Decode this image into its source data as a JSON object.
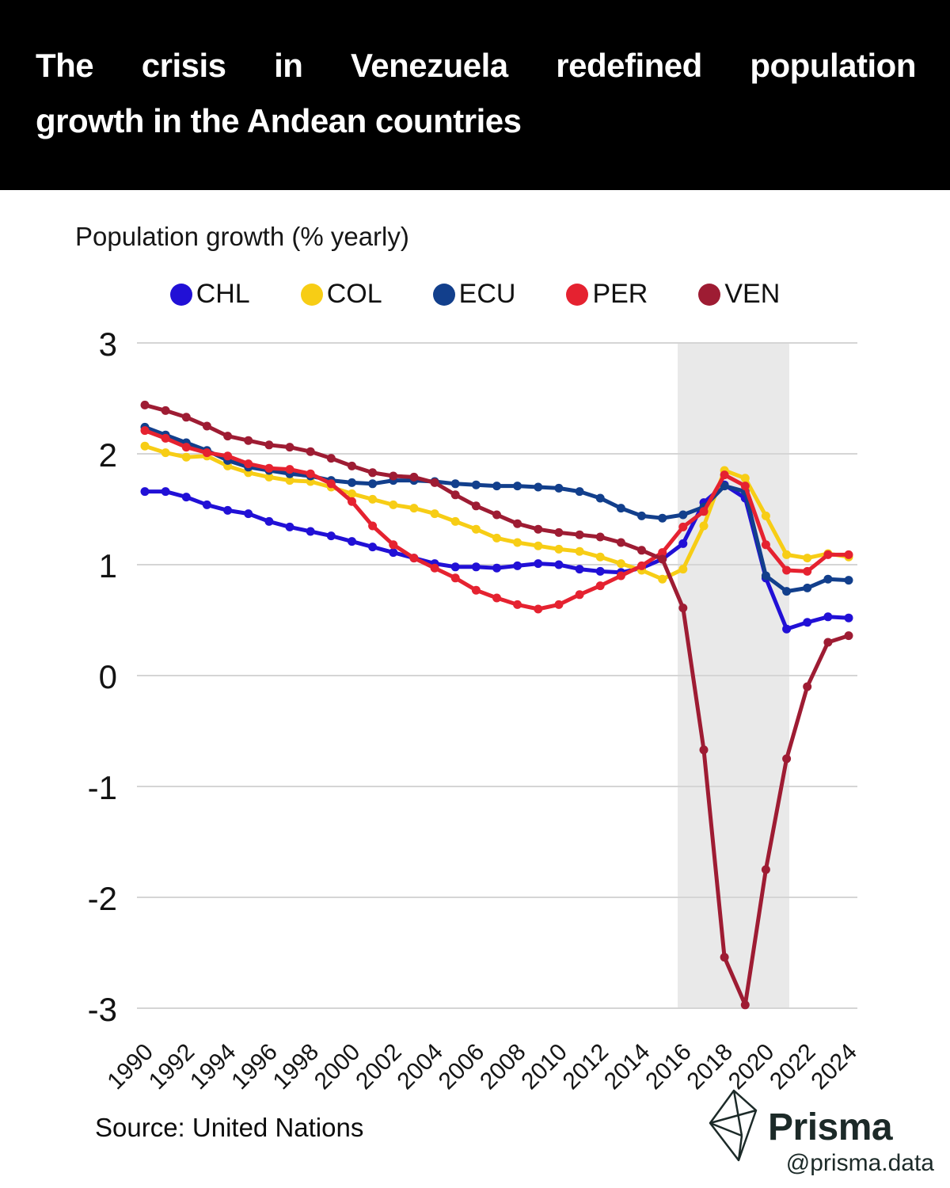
{
  "header": {
    "title": "The crisis in Venezuela redefined population growth in the Andean countries",
    "title_lines": [
      "The crisis in Venezuela redefined population",
      "growth in the Andean countries"
    ]
  },
  "subtitle": "Population growth (% yearly)",
  "source": {
    "label": "Source: United Nations"
  },
  "branding": {
    "name": "Prisma",
    "handle": "@prisma.data",
    "logo_icon": "prism-diamond-icon",
    "color": "#1c2a28"
  },
  "chart_data": {
    "type": "line",
    "title": "Population growth (% yearly)",
    "xlabel": "",
    "ylabel": "Population growth (% yearly)",
    "ylim": [
      -3,
      3
    ],
    "y_ticks": [
      3,
      2,
      1,
      0,
      -1,
      -2,
      -3
    ],
    "x_range": [
      1990,
      2024
    ],
    "x_tick_years": [
      1990,
      1992,
      1994,
      1996,
      1998,
      2000,
      2002,
      2004,
      2006,
      2008,
      2010,
      2012,
      2014,
      2016,
      2018,
      2020,
      2022,
      2024
    ],
    "grid": true,
    "legend_position": "top",
    "grid_color": "#d5d5d5",
    "highlight_band": {
      "from": 2015.74,
      "to": 2021.13,
      "color": "#e9e9e9"
    },
    "x": [
      1990,
      1991,
      1992,
      1993,
      1994,
      1995,
      1996,
      1997,
      1998,
      1999,
      2000,
      2001,
      2002,
      2003,
      2004,
      2005,
      2006,
      2007,
      2008,
      2009,
      2010,
      2011,
      2012,
      2013,
      2014,
      2015,
      2016,
      2017,
      2018,
      2019,
      2020,
      2021,
      2022,
      2023,
      2024
    ],
    "series": [
      {
        "name": "CHL",
        "color": "#2110d6",
        "values": [
          1.66,
          1.66,
          1.61,
          1.54,
          1.49,
          1.46,
          1.39,
          1.34,
          1.3,
          1.26,
          1.21,
          1.16,
          1.11,
          1.06,
          1.01,
          0.98,
          0.98,
          0.97,
          0.99,
          1.01,
          1.0,
          0.96,
          0.94,
          0.93,
          0.97,
          1.05,
          1.19,
          1.56,
          1.72,
          1.6,
          0.88,
          0.42,
          0.48,
          0.53,
          0.52
        ]
      },
      {
        "name": "COL",
        "color": "#f7cd15",
        "values": [
          2.07,
          2.01,
          1.97,
          1.98,
          1.89,
          1.83,
          1.79,
          1.76,
          1.75,
          1.7,
          1.64,
          1.59,
          1.54,
          1.51,
          1.46,
          1.39,
          1.32,
          1.24,
          1.2,
          1.17,
          1.14,
          1.12,
          1.07,
          1.01,
          0.95,
          0.87,
          0.96,
          1.35,
          1.85,
          1.78,
          1.44,
          1.09,
          1.06,
          1.1,
          1.07
        ]
      },
      {
        "name": "ECU",
        "color": "#123f8c",
        "values": [
          2.24,
          2.17,
          2.1,
          2.03,
          1.94,
          1.88,
          1.85,
          1.82,
          1.8,
          1.76,
          1.74,
          1.73,
          1.76,
          1.76,
          1.75,
          1.73,
          1.72,
          1.71,
          1.71,
          1.7,
          1.69,
          1.66,
          1.6,
          1.51,
          1.44,
          1.42,
          1.45,
          1.52,
          1.71,
          1.66,
          0.9,
          0.76,
          0.79,
          0.87,
          0.86
        ]
      },
      {
        "name": "PER",
        "color": "#e52230",
        "values": [
          2.21,
          2.14,
          2.06,
          2.01,
          1.98,
          1.91,
          1.87,
          1.86,
          1.82,
          1.73,
          1.57,
          1.35,
          1.18,
          1.06,
          0.97,
          0.88,
          0.77,
          0.7,
          0.64,
          0.6,
          0.64,
          0.73,
          0.81,
          0.9,
          0.99,
          1.11,
          1.34,
          1.48,
          1.81,
          1.71,
          1.18,
          0.95,
          0.94,
          1.09,
          1.09
        ]
      },
      {
        "name": "VEN",
        "color": "#9e1c33",
        "values": [
          2.44,
          2.39,
          2.33,
          2.25,
          2.16,
          2.12,
          2.08,
          2.06,
          2.02,
          1.96,
          1.89,
          1.83,
          1.8,
          1.79,
          1.74,
          1.63,
          1.53,
          1.45,
          1.37,
          1.32,
          1.29,
          1.27,
          1.25,
          1.2,
          1.13,
          1.05,
          0.61,
          -0.67,
          -2.54,
          -2.97,
          -1.75,
          -0.75,
          -0.1,
          0.3,
          0.36
        ]
      }
    ]
  }
}
